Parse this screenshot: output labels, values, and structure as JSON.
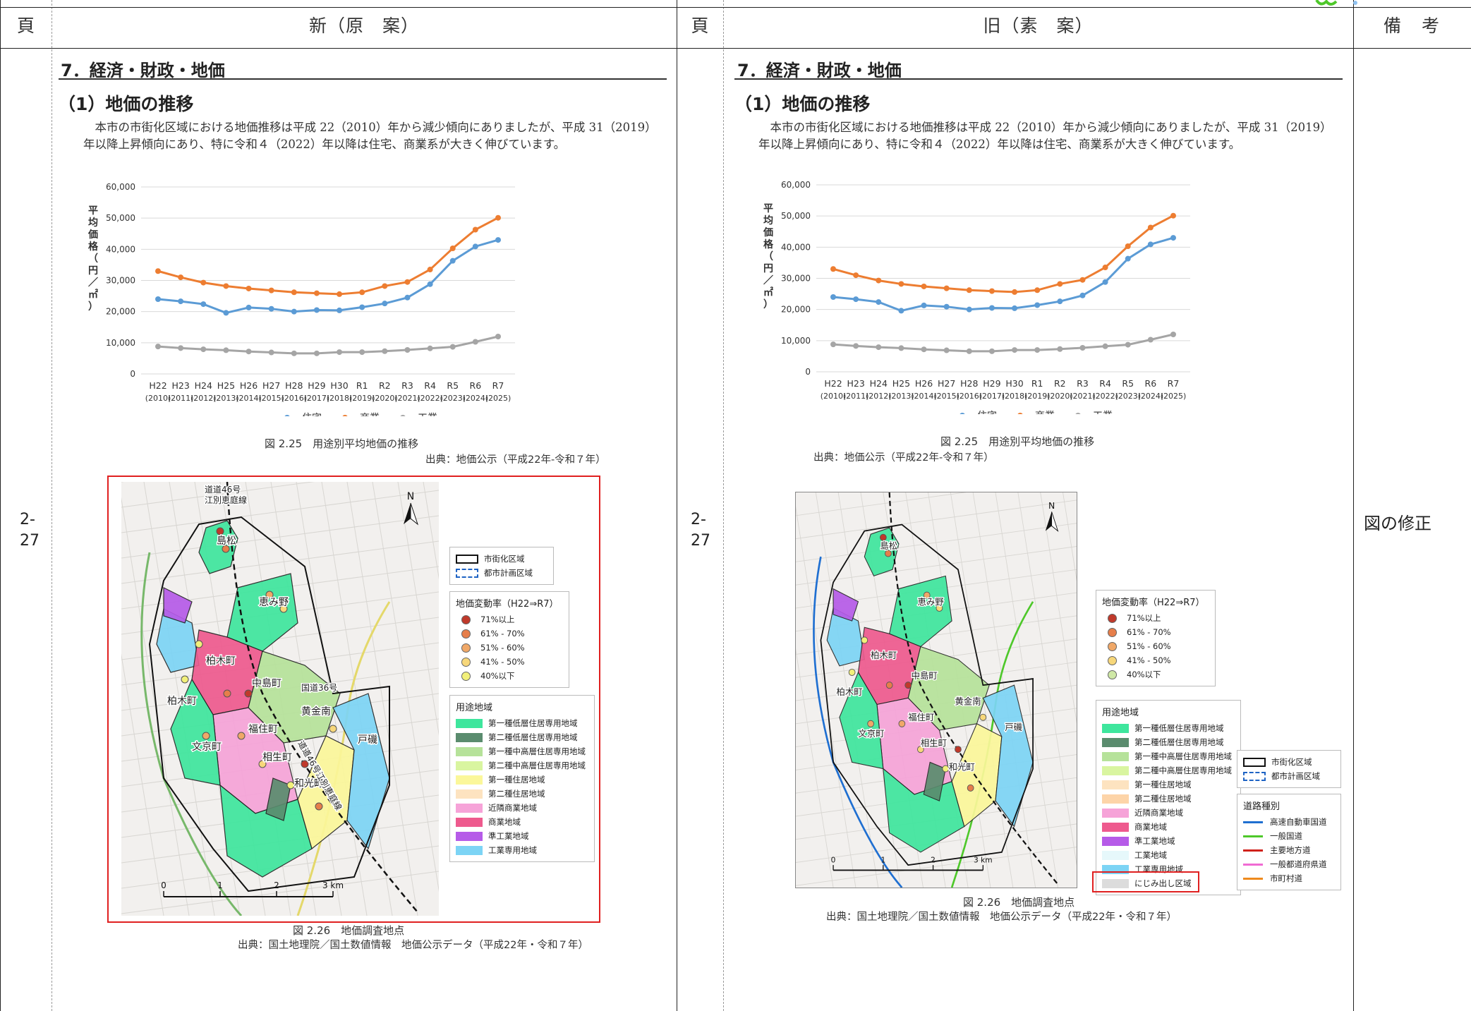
{
  "header": {
    "col_page": "頁",
    "col_new": "新（原　案）",
    "col_old": "旧（素　案）",
    "col_remarks": "備　考"
  },
  "page_no": "2-\n27",
  "remarks": "図の修正",
  "doc": {
    "section_title": "7．経済・財政・地価",
    "subsection_title": "（1）地価の推移",
    "paragraph": "本市の市街化区域における地価推移は平成 22（2010）年から減少傾向にありましたが、平成 31（2019）年以降上昇傾向にあり、特に令和４（2022）年以降は住宅、商業系が大きく伸びています。",
    "fig25_caption": "図 2.25　用途別平均地価の推移",
    "fig25_source": "出典：地価公示（平成22年-令和７年）",
    "fig26_caption": "図 2.26　地価調査地点",
    "fig26_source": "出典：国土地理院／国土数値情報　地価公示データ（平成22年・令和７年）"
  },
  "chart_data": {
    "type": "line",
    "ylabel": "平均価格（円／㎡）",
    "ylim": [
      0,
      60000
    ],
    "yticks": [
      "0",
      "10,000",
      "20,000",
      "30,000",
      "40,000",
      "50,000",
      "60,000"
    ],
    "categories": [
      "H22",
      "H23",
      "H24",
      "H25",
      "H26",
      "H27",
      "H28",
      "H29",
      "H30",
      "R1",
      "R2",
      "R3",
      "R4",
      "R5",
      "R6",
      "R7"
    ],
    "categories_year": [
      "(2010)",
      "(2011)",
      "(2012)",
      "(2013)",
      "(2014)",
      "(2015)",
      "(2016)",
      "(2017)",
      "(2018)",
      "(2019)",
      "(2020)",
      "(2021)",
      "(2022)",
      "(2023)",
      "(2024)",
      "(2025)"
    ],
    "grid": true,
    "legend_position": "bottom",
    "series": [
      {
        "name": "住宅",
        "color": "#5b9bd5",
        "values": [
          24000,
          23300,
          22400,
          19600,
          21300,
          20900,
          20000,
          20500,
          20400,
          21400,
          22600,
          24500,
          28800,
          36300,
          40900,
          43000
        ]
      },
      {
        "name": "商業",
        "color": "#ed7d31",
        "values": [
          33000,
          31000,
          29300,
          28200,
          27400,
          26800,
          26200,
          25900,
          25600,
          26200,
          28200,
          29500,
          33500,
          40300,
          46300,
          50100
        ]
      },
      {
        "name": "工業",
        "color": "#a5a5a5",
        "values": [
          8800,
          8300,
          7900,
          7600,
          7200,
          6900,
          6600,
          6600,
          7000,
          7000,
          7300,
          7700,
          8200,
          8700,
          10300,
          12000
        ]
      }
    ]
  },
  "map": {
    "north": "N",
    "scale_labels": [
      "0",
      "1",
      "2",
      "3 km"
    ],
    "places": {
      "shimamatsu": "島松",
      "megumino": "恵み野",
      "kashiwagi_cho": "柏木町",
      "nakashima_cho": "中島町",
      "kashiwagi_cho_w": "柏木町",
      "kogane_minami": "黄金南",
      "inazumi_cho": "福住町",
      "bunkyo_cho": "文京町",
      "aioi_cho": "相生町",
      "wako_cho": "和光町",
      "toiso": "戸磯",
      "route36": "国道36号",
      "route46_top": "道道46号\n江別恵庭線",
      "route46_mid": "道道46号江別恵庭線"
    },
    "legend_boundary": {
      "urban_area": "市街化区域",
      "planning_area": "都市計画区域"
    },
    "legend_rate": {
      "title": "地価変動率（H22⇒R7）",
      "items": [
        {
          "label": "71%以上",
          "color": "#c0392b"
        },
        {
          "label": "61% - 70%",
          "color": "#e67e4a"
        },
        {
          "label": "51% - 60%",
          "color": "#f0a868"
        },
        {
          "label": "41% - 50%",
          "color": "#f7d77a"
        },
        {
          "label": "40%以下",
          "color": "#f2f07a"
        }
      ]
    },
    "legend_rate_old_last": "#cfe8a6",
    "legend_zone": {
      "title": "用途地域",
      "items": [
        {
          "label": "第一種低層住居専用地域",
          "color": "#3ee69d"
        },
        {
          "label": "第二種低層住居専用地域",
          "color": "#5a8c6e"
        },
        {
          "label": "第一種中高層住居専用地域",
          "color": "#b6e29a"
        },
        {
          "label": "第二種中高層住居専用地域",
          "color": "#d9f5a0"
        },
        {
          "label": "第一種住居地域",
          "color": "#fbf79a"
        },
        {
          "label": "第二種住居地域",
          "color": "#fde3c0"
        },
        {
          "label": "近隣商業地域",
          "color": "#f6a3d8"
        },
        {
          "label": "商業地域",
          "color": "#ee5a8e"
        },
        {
          "label": "準工業地域",
          "color": "#b65be8"
        },
        {
          "label": "工業専用地域",
          "color": "#7cd4f5"
        }
      ]
    },
    "legend_zone_old": {
      "title": "用途地域",
      "items": [
        {
          "label": "第一種低層住居専用地域",
          "color": "#3ee69d"
        },
        {
          "label": "第二種低層住居専用地域",
          "color": "#5a8c6e"
        },
        {
          "label": "第一種中高層住居専用地域",
          "color": "#b6e29a"
        },
        {
          "label": "第二種中高層住居専用地域",
          "color": "#d9f5a0"
        },
        {
          "label": "第一種住居地域",
          "color": "#fde3c0"
        },
        {
          "label": "第二種住居地域",
          "color": "#fdd4a8"
        },
        {
          "label": "近隣商業地域",
          "color": "#f6a3d8"
        },
        {
          "label": "商業地域",
          "color": "#ee5a8e"
        },
        {
          "label": "準工業地域",
          "color": "#b65be8"
        },
        {
          "label": "工業地域",
          "color": "#e6f8fb"
        },
        {
          "label": "工業専用地域",
          "color": "#7cd4f5"
        },
        {
          "label": "にじみ出し区域",
          "color": "#dcdcdc"
        }
      ]
    },
    "legend_road": {
      "title": "道路種別",
      "items": [
        {
          "label": "高速自動車国道",
          "color": "#1f6fd1"
        },
        {
          "label": "一般国道",
          "color": "#4ec82a"
        },
        {
          "label": "主要地方道",
          "color": "#d0211b"
        },
        {
          "label": "一般都道府県道",
          "color": "#f06bd3"
        },
        {
          "label": "市町村道",
          "color": "#ee8a1e"
        }
      ]
    }
  }
}
